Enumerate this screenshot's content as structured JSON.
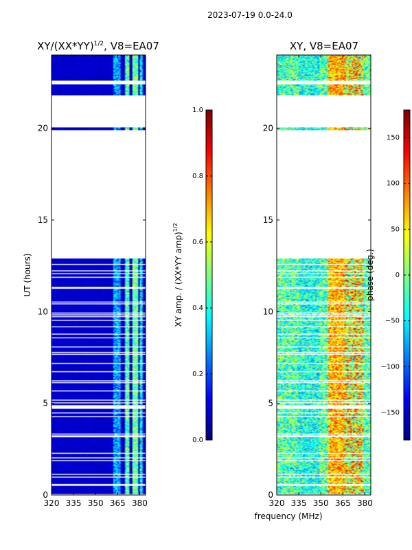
{
  "figure": {
    "suptitle": "2023-07-19 0.0-24.0",
    "xlabel_shared": "frequency (MHz)"
  },
  "chart_data": [
    {
      "type": "heatmap",
      "title": "XY/(XX*YY)",
      "title_exponent": "1/2",
      "title_suffix": ", V8=EA07",
      "ylabel": "UT (hours)",
      "xticks": [
        "320",
        "335",
        "350",
        "365",
        "380"
      ],
      "xtick_values": [
        320,
        335,
        350,
        365,
        380
      ],
      "xlim": [
        320,
        384
      ],
      "yticks": [
        "0",
        "5",
        "10",
        "15",
        "20"
      ],
      "ytick_values": [
        0,
        5,
        10,
        15,
        20
      ],
      "ylim": [
        0,
        24
      ],
      "data_spans_hours": [
        [
          0,
          12.9
        ],
        [
          19.9,
          20.05
        ],
        [
          21.8,
          22.4
        ],
        [
          22.6,
          24
        ]
      ],
      "colorbar": {
        "label": "XY amp. / (XX*YY amp)",
        "label_exponent": "1/2",
        "ticks": [
          "0.0",
          "0.2",
          "0.4",
          "0.6",
          "0.8",
          "1.0"
        ],
        "tick_values": [
          0,
          0.2,
          0.4,
          0.6,
          0.8,
          1.0
        ],
        "vmin": 0,
        "vmax": 1,
        "cmap": "jet"
      }
    },
    {
      "type": "heatmap",
      "title": "XY, V8=EA07",
      "ylabel": "",
      "xticks": [
        "320",
        "335",
        "350",
        "365",
        "380"
      ],
      "xtick_values": [
        320,
        335,
        350,
        365,
        380
      ],
      "xlim": [
        320,
        384
      ],
      "yticks": [
        "0",
        "5",
        "10",
        "15",
        "20"
      ],
      "ytick_values": [
        0,
        5,
        10,
        15,
        20
      ],
      "ylim": [
        0,
        24
      ],
      "data_spans_hours": [
        [
          0,
          12.9
        ],
        [
          19.9,
          20.05
        ],
        [
          21.8,
          22.4
        ],
        [
          22.6,
          24
        ]
      ],
      "colorbar": {
        "label": "phase (deg.)",
        "ticks": [
          "−150",
          "−100",
          "−50",
          "0",
          "50",
          "100",
          "150"
        ],
        "tick_values": [
          -150,
          -100,
          -50,
          0,
          50,
          100,
          150
        ],
        "vmin": -180,
        "vmax": 180,
        "cmap": "jet"
      }
    }
  ]
}
